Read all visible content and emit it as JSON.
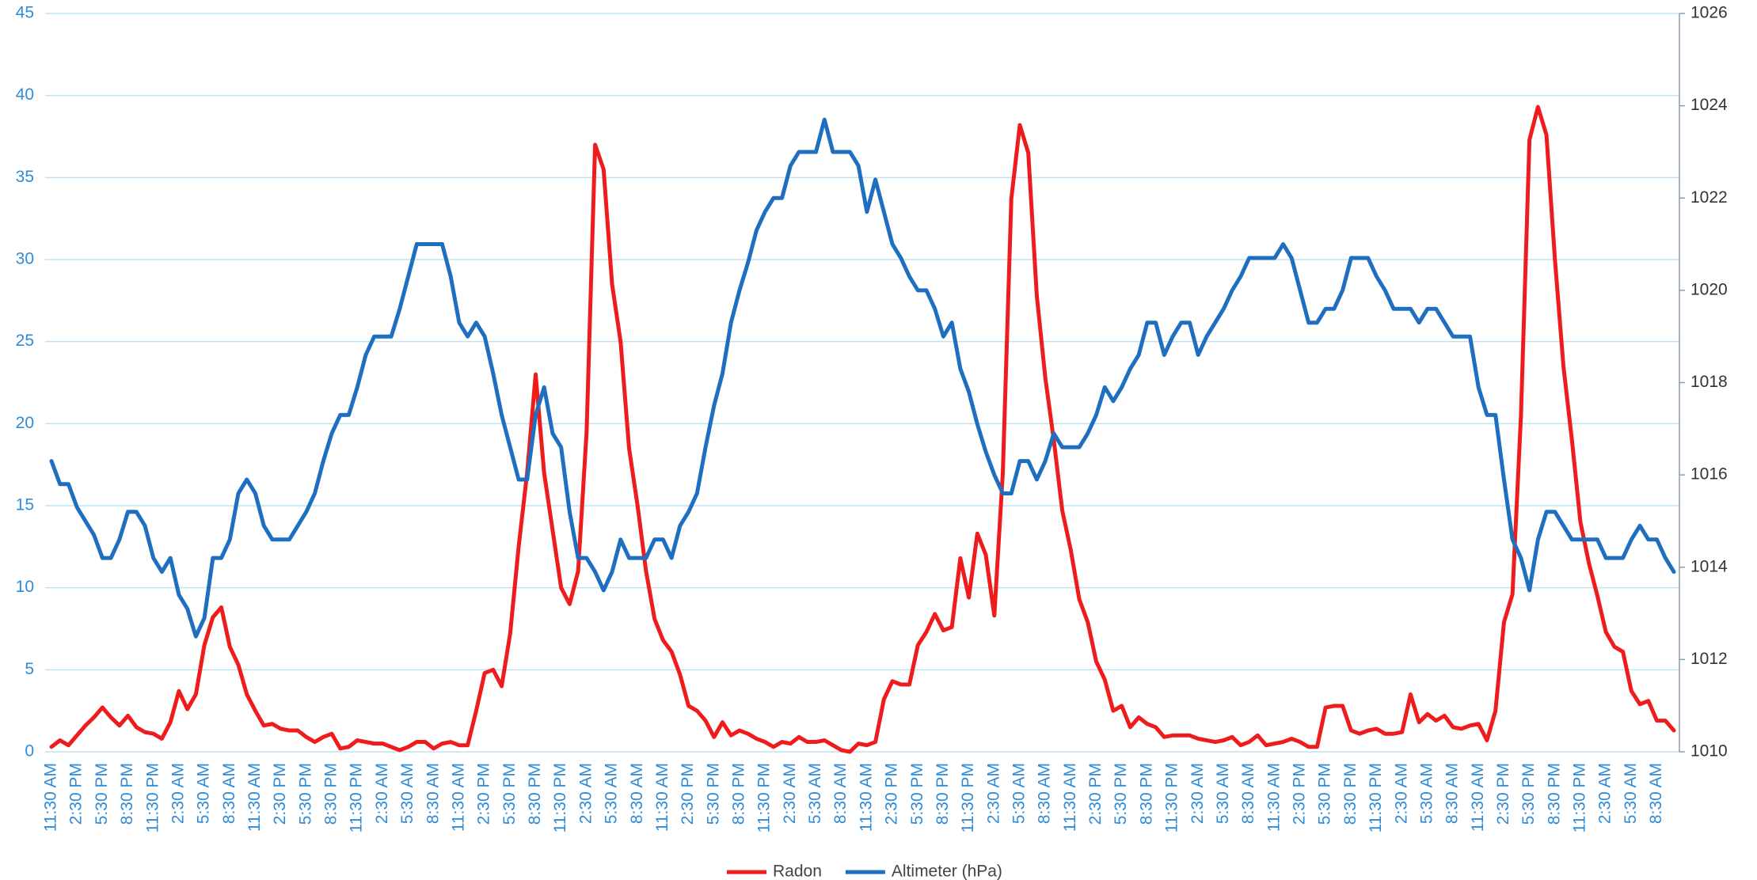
{
  "chart_data": {
    "type": "line",
    "categories": [
      "11:30 AM",
      null,
      null,
      "2:30 PM",
      null,
      null,
      "5:30 PM",
      null,
      null,
      "8:30 PM",
      null,
      null,
      "11:30 PM",
      null,
      null,
      "2:30 AM",
      null,
      null,
      "5:30 AM",
      null,
      null,
      "8:30 AM",
      null,
      null,
      "11:30 AM",
      null,
      null,
      "2:30 PM",
      null,
      null,
      "5:30 PM",
      null,
      null,
      "8:30 PM",
      null,
      null,
      "11:30 PM",
      null,
      null,
      "2:30 AM",
      null,
      null,
      "5:30 AM",
      null,
      null,
      "8:30 AM",
      null,
      null,
      "11:30 AM",
      null,
      null,
      "2:30 PM",
      null,
      null,
      "5:30 PM",
      null,
      null,
      "8:30 PM",
      null,
      null,
      "11:30 PM",
      null,
      null,
      "2:30 AM",
      null,
      null,
      "5:30 AM",
      null,
      null,
      "8:30 AM",
      null,
      null,
      "11:30 AM",
      null,
      null,
      "2:30 PM",
      null,
      null,
      "5:30 PM",
      null,
      null,
      "8:30 PM",
      null,
      null,
      "11:30 PM",
      null,
      null,
      "2:30 AM",
      null,
      null,
      "5:30 AM",
      null,
      null,
      "8:30 AM",
      null,
      null,
      "11:30 AM",
      null,
      null,
      "2:30 PM",
      null,
      null,
      "5:30 PM",
      null,
      null,
      "8:30 PM",
      null,
      null,
      "11:30 PM",
      null,
      null,
      "2:30 AM",
      null,
      null,
      "5:30 AM",
      null,
      null,
      "8:30 AM",
      null,
      null,
      "11:30 AM",
      null,
      null,
      "2:30 PM",
      null,
      null,
      "5:30 PM",
      null,
      null,
      "8:30 PM",
      null,
      null,
      "11:30 PM",
      null,
      null,
      "2:30 AM",
      null,
      null,
      "5:30 AM",
      null,
      null,
      "8:30 AM",
      null,
      null,
      "11:30 AM",
      null,
      null,
      "2:30 PM",
      null,
      null,
      "5:30 PM",
      null,
      null,
      "8:30 PM",
      null,
      null,
      "11:30 PM",
      null,
      null,
      "2:30 AM",
      null,
      null,
      "5:30 AM",
      null,
      null,
      "8:30 AM",
      null,
      null,
      "11:30 AM",
      null,
      null,
      "2:30 PM",
      null,
      null,
      "5:30 PM",
      null,
      null,
      "8:30 PM",
      null,
      null,
      "11:30 PM",
      null,
      null,
      "2:30 AM",
      null,
      null,
      "5:30 AM",
      null,
      null,
      "8:30 AM",
      null,
      null
    ],
    "series": [
      {
        "name": "Radon",
        "color": "#ee1c1c",
        "values": [
          0.3,
          0.7,
          0.4,
          1.0,
          1.6,
          2.1,
          2.7,
          2.1,
          1.6,
          2.2,
          1.5,
          1.2,
          1.1,
          0.8,
          1.8,
          3.7,
          2.6,
          3.5,
          6.5,
          8.2,
          8.8,
          6.4,
          5.3,
          3.5,
          2.5,
          1.6,
          1.7,
          1.4,
          1.3,
          1.3,
          0.9,
          0.6,
          0.9,
          1.1,
          0.2,
          0.3,
          0.7,
          0.6,
          0.5,
          0.5,
          0.3,
          0.1,
          0.3,
          0.6,
          0.6,
          0.2,
          0.5,
          0.6,
          0.4,
          0.4,
          2.5,
          4.8,
          5.0,
          4.0,
          7.2,
          12.5,
          17,
          23,
          17,
          13.5,
          10,
          9,
          11,
          19.5,
          37,
          35.5,
          28.5,
          25,
          18.5,
          15,
          11,
          8.1,
          6.8,
          6.1,
          4.7,
          2.8,
          2.5,
          1.9,
          0.9,
          1.8,
          1.0,
          1.3,
          1.1,
          0.8,
          0.6,
          0.3,
          0.6,
          0.5,
          0.9,
          0.6,
          0.6,
          0.7,
          0.4,
          0.1,
          0.0,
          0.5,
          0.4,
          0.6,
          3.2,
          4.3,
          4.1,
          4.1,
          6.5,
          7.3,
          8.4,
          7.4,
          7.6,
          11.8,
          9.4,
          13.3,
          12,
          8.3,
          17,
          33.7,
          38.2,
          36.5,
          27.8,
          22.8,
          19,
          14.7,
          12.3,
          9.3,
          7.9,
          5.5,
          4.4,
          2.5,
          2.8,
          1.5,
          2.1,
          1.7,
          1.5,
          0.9,
          1.0,
          1.0,
          1.0,
          0.8,
          0.7,
          0.6,
          0.7,
          0.9,
          0.4,
          0.6,
          1.0,
          0.4,
          0.5,
          0.6,
          0.8,
          0.6,
          0.3,
          0.3,
          2.7,
          2.8,
          2.8,
          1.3,
          1.1,
          1.3,
          1.4,
          1.1,
          1.1,
          1.2,
          3.5,
          1.8,
          2.3,
          1.9,
          2.2,
          1.5,
          1.4,
          1.6,
          1.7,
          0.7,
          2.5,
          7.9,
          9.6,
          20.5,
          37.3,
          39.3,
          37.6,
          30,
          23.5,
          19,
          14,
          11.5,
          9.5,
          7.3,
          6.4,
          6.1,
          3.7,
          2.9,
          3.1,
          1.9,
          1.9,
          1.3
        ]
      },
      {
        "name": "Altimeter (hPa)",
        "color": "#1f6fc1",
        "axis": "y2",
        "values": [
          1016.3,
          1015.8,
          1015.8,
          1015.3,
          1015.0,
          1014.7,
          1014.2,
          1014.2,
          1014.6,
          1015.2,
          1015.2,
          1014.9,
          1014.2,
          1013.9,
          1014.2,
          1013.4,
          1013.1,
          1012.5,
          1012.9,
          1014.2,
          1014.2,
          1014.6,
          1015.6,
          1015.9,
          1015.6,
          1014.9,
          1014.6,
          1014.6,
          1014.6,
          1014.9,
          1015.2,
          1015.6,
          1016.3,
          1016.9,
          1017.3,
          1017.3,
          1017.9,
          1018.6,
          1019.0,
          1019.0,
          1019.0,
          1019.6,
          1020.3,
          1021.0,
          1021.0,
          1021.0,
          1021.0,
          1020.3,
          1019.3,
          1019.0,
          1019.3,
          1019.0,
          1018.2,
          1017.3,
          1016.6,
          1015.9,
          1015.9,
          1017.3,
          1017.9,
          1016.9,
          1016.6,
          1015.2,
          1014.2,
          1014.2,
          1013.9,
          1013.5,
          1013.9,
          1014.6,
          1014.2,
          1014.2,
          1014.2,
          1014.6,
          1014.6,
          1014.2,
          1014.9,
          1015.2,
          1015.6,
          1016.6,
          1017.5,
          1018.2,
          1019.3,
          1020.0,
          1020.6,
          1021.3,
          1021.7,
          1022.0,
          1022.0,
          1022.7,
          1023.0,
          1023.0,
          1023.0,
          1023.7,
          1023.0,
          1023.0,
          1023.0,
          1022.7,
          1021.7,
          1022.4,
          1021.7,
          1021.0,
          1020.7,
          1020.3,
          1020.0,
          1020.0,
          1019.6,
          1019.0,
          1019.3,
          1018.3,
          1017.8,
          1017.1,
          1016.5,
          1016.0,
          1015.6,
          1015.6,
          1016.3,
          1016.3,
          1015.9,
          1016.3,
          1016.9,
          1016.6,
          1016.6,
          1016.6,
          1016.9,
          1017.3,
          1017.9,
          1017.6,
          1017.9,
          1018.3,
          1018.6,
          1019.3,
          1019.3,
          1018.6,
          1019.0,
          1019.3,
          1019.3,
          1018.6,
          1019.0,
          1019.3,
          1019.6,
          1020.0,
          1020.3,
          1020.7,
          1020.7,
          1020.7,
          1020.7,
          1021.0,
          1020.7,
          1020.0,
          1019.3,
          1019.3,
          1019.6,
          1019.6,
          1020.0,
          1020.7,
          1020.7,
          1020.7,
          1020.3,
          1020.0,
          1019.6,
          1019.6,
          1019.6,
          1019.3,
          1019.6,
          1019.6,
          1019.3,
          1019.0,
          1019.0,
          1019.0,
          1017.9,
          1017.3,
          1017.3,
          1015.9,
          1014.6,
          1014.2,
          1013.5,
          1014.6,
          1015.2,
          1015.2,
          1014.9,
          1014.6,
          1014.6,
          1014.6,
          1014.6,
          1014.2,
          1014.2,
          1014.2,
          1014.6,
          1014.9,
          1014.6,
          1014.6,
          1014.2,
          1013.9
        ]
      }
    ],
    "ylim": [
      0,
      45
    ],
    "yticks": [
      0,
      5,
      10,
      15,
      20,
      25,
      30,
      35,
      40,
      45
    ],
    "y2lim": [
      1010,
      1026
    ],
    "y2ticks": [
      1010,
      1012,
      1014,
      1016,
      1018,
      1020,
      1022,
      1024,
      1026
    ],
    "grid": true,
    "legend": "bottom"
  }
}
